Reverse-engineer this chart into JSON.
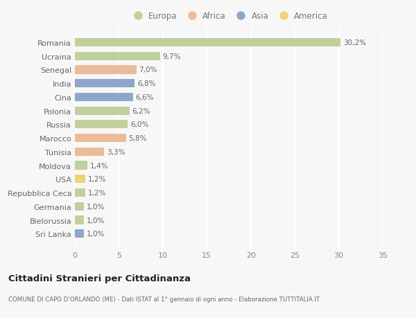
{
  "countries": [
    "Romania",
    "Ucraina",
    "Senegal",
    "India",
    "Cina",
    "Polonia",
    "Russia",
    "Marocco",
    "Tunisia",
    "Moldova",
    "USA",
    "Repubblica Ceca",
    "Germania",
    "Bielorussia",
    "Sri Lanka"
  ],
  "values": [
    30.2,
    9.7,
    7.0,
    6.8,
    6.6,
    6.2,
    6.0,
    5.8,
    3.3,
    1.4,
    1.2,
    1.2,
    1.0,
    1.0,
    1.0
  ],
  "labels": [
    "30,2%",
    "9,7%",
    "7,0%",
    "6,8%",
    "6,6%",
    "6,2%",
    "6,0%",
    "5,8%",
    "3,3%",
    "1,4%",
    "1,2%",
    "1,2%",
    "1,0%",
    "1,0%",
    "1,0%"
  ],
  "colors": [
    "#adc47e",
    "#adc47e",
    "#e8a97a",
    "#6b8cba",
    "#6b8cba",
    "#adc47e",
    "#adc47e",
    "#e8a97a",
    "#e8a97a",
    "#adc47e",
    "#f0c84a",
    "#adc47e",
    "#adc47e",
    "#adc47e",
    "#6b8cba"
  ],
  "legend_labels": [
    "Europa",
    "Africa",
    "Asia",
    "America"
  ],
  "legend_colors": [
    "#adc47e",
    "#e8a97a",
    "#6b8cba",
    "#f0c84a"
  ],
  "xlim": [
    0,
    35
  ],
  "xticks": [
    0,
    5,
    10,
    15,
    20,
    25,
    30,
    35
  ],
  "title": "Cittadini Stranieri per Cittadinanza",
  "subtitle": "COMUNE DI CAPO D'ORLANDO (ME) - Dati ISTAT al 1° gennaio di ogni anno - Elaborazione TUTTITALIA.IT",
  "bg_color": "#f7f7f7",
  "grid_color": "#ffffff",
  "bar_height": 0.62,
  "bar_alpha": 0.75
}
